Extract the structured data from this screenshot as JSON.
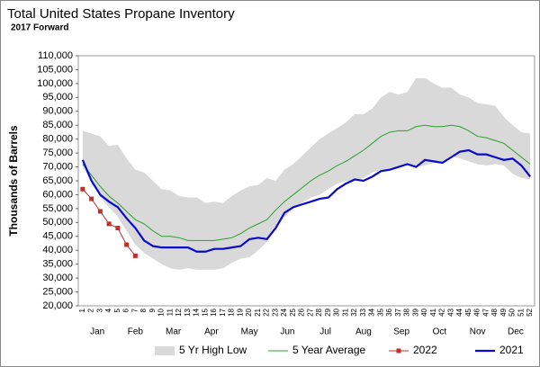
{
  "chart_data": {
    "type": "line",
    "title": "Total United States Propane Inventory",
    "subtitle": "2017 Forward",
    "y_label": "Thousands of Barrels",
    "categories": [
      1,
      2,
      3,
      4,
      5,
      6,
      7,
      8,
      9,
      10,
      11,
      12,
      13,
      14,
      15,
      16,
      17,
      18,
      19,
      20,
      21,
      22,
      23,
      24,
      25,
      26,
      27,
      28,
      29,
      30,
      31,
      32,
      33,
      34,
      35,
      36,
      37,
      38,
      39,
      40,
      41,
      42,
      43,
      44,
      45,
      46,
      47,
      48,
      49,
      50,
      51,
      52
    ],
    "months": [
      "Jan",
      "Feb",
      "Mar",
      "Apr",
      "May",
      "Jun",
      "Jul",
      "Aug",
      "Sep",
      "Oct",
      "Nov",
      "Dec"
    ],
    "ylim": [
      20000,
      110000
    ],
    "yticks": [
      {
        "value": 20000,
        "label": "20,000"
      },
      {
        "value": 25000,
        "label": "25,000"
      },
      {
        "value": 30000,
        "label": "30,000"
      },
      {
        "value": 35000,
        "label": "35,000"
      },
      {
        "value": 40000,
        "label": "40,000"
      },
      {
        "value": 45000,
        "label": "45,000"
      },
      {
        "value": 50000,
        "label": "50,000"
      },
      {
        "value": 55000,
        "label": "55,000"
      },
      {
        "value": 60000,
        "label": "60,000"
      },
      {
        "value": 65000,
        "label": "65,000"
      },
      {
        "value": 70000,
        "label": "70,000"
      },
      {
        "value": 75000,
        "label": "75,000"
      },
      {
        "value": 80000,
        "label": "80,000"
      },
      {
        "value": 85000,
        "label": "85,000"
      },
      {
        "value": 90000,
        "label": "90,000"
      },
      {
        "value": 95000,
        "label": "95,000"
      },
      {
        "value": 100000,
        "label": "100,000"
      },
      {
        "value": 105000,
        "label": "105,000"
      },
      {
        "value": 110000,
        "label": "110,000"
      }
    ],
    "grid": false,
    "series": [
      {
        "name": "5 Yr High Low",
        "color": "#d9d9d9",
        "kind": "band",
        "high": [
          83000,
          82000,
          81000,
          77500,
          78000,
          73000,
          69000,
          68000,
          65000,
          62000,
          61500,
          59500,
          59000,
          59000,
          57000,
          57500,
          57000,
          59500,
          61500,
          63000,
          63500,
          66000,
          65000,
          69000,
          71000,
          74000,
          77000,
          80000,
          82000,
          84000,
          86000,
          89000,
          89000,
          91000,
          95000,
          97000,
          96000,
          97000,
          102000,
          102000,
          100000,
          98500,
          98500,
          96000,
          95000,
          93000,
          92500,
          92000,
          88000,
          85000,
          82500,
          82000
        ],
        "low": [
          70000,
          65000,
          59000,
          55500,
          52000,
          47000,
          42000,
          39000,
          37000,
          35000,
          33500,
          33000,
          33500,
          33000,
          33000,
          33000,
          33500,
          35500,
          37000,
          37500,
          40000,
          43000,
          48000,
          52000,
          55000,
          57000,
          59000,
          60000,
          62000,
          64000,
          65000,
          65000,
          66000,
          68000,
          69000,
          69500,
          70000,
          70500,
          70000,
          70500,
          71500,
          72000,
          74000,
          73000,
          72000,
          71000,
          70500,
          71000,
          70500,
          67500,
          66000,
          65500
        ]
      },
      {
        "name": "5 Year Average",
        "color": "#2e9e2e",
        "kind": "line",
        "values": [
          71000,
          67000,
          63000,
          59500,
          57000,
          54000,
          51000,
          49500,
          47000,
          45000,
          45000,
          44500,
          43500,
          43500,
          43500,
          43500,
          44000,
          44500,
          46000,
          48000,
          49500,
          51000,
          54500,
          57500,
          60000,
          62500,
          65000,
          67000,
          68500,
          70500,
          72000,
          74000,
          76000,
          78500,
          81000,
          82500,
          83000,
          83000,
          84500,
          85000,
          84500,
          84500,
          85000,
          84500,
          83000,
          81000,
          80500,
          79500,
          78500,
          76000,
          73500,
          71000
        ]
      },
      {
        "name": "2022",
        "color": "#c0302a",
        "kind": "marker-line",
        "values": [
          62000,
          58500,
          54000,
          49500,
          48000,
          42000,
          38000,
          null,
          null,
          null,
          null,
          null,
          null,
          null,
          null,
          null,
          null,
          null,
          null,
          null,
          null,
          null,
          null,
          null,
          null,
          null,
          null,
          null,
          null,
          null,
          null,
          null,
          null,
          null,
          null,
          null,
          null,
          null,
          null,
          null,
          null,
          null,
          null,
          null,
          null,
          null,
          null,
          null,
          null,
          null,
          null,
          null
        ]
      },
      {
        "name": "2021",
        "color": "#0a0acc",
        "kind": "thick-line",
        "values": [
          72500,
          65000,
          60000,
          57500,
          55500,
          51500,
          48000,
          43500,
          41500,
          41000,
          41000,
          41000,
          41000,
          39500,
          39500,
          40500,
          40500,
          41000,
          41500,
          44000,
          44500,
          44000,
          48000,
          53500,
          55500,
          56500,
          57500,
          58500,
          59000,
          62000,
          64000,
          65500,
          65000,
          66500,
          68500,
          69000,
          70000,
          71000,
          70000,
          72500,
          72000,
          71500,
          73500,
          75500,
          76000,
          74500,
          74500,
          73500,
          72500,
          73000,
          70500,
          66500
        ]
      }
    ]
  }
}
